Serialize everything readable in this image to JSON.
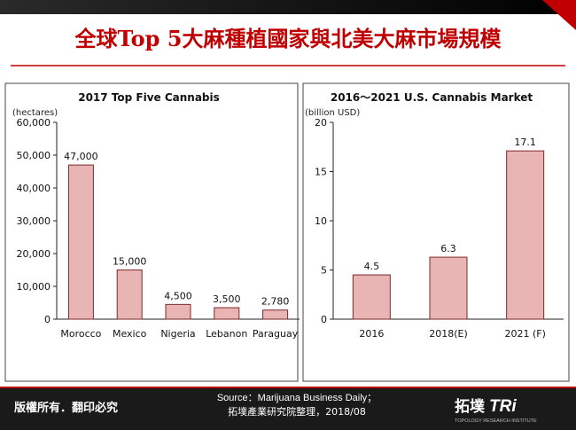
{
  "slide": {
    "title": "全球Top 5大麻種植國家與北美大麻市場規模",
    "copyright": "版權所有．翻印必究",
    "source_line1": "Source：Marijuana Business Daily；",
    "source_line2": "拓墣產業研究院整理，2018/08",
    "logo_cn": "拓墣",
    "logo_tri": "TRi",
    "logo_sub": "TOPOLOGY RESEARCH INSTITUTE",
    "colors": {
      "title_red": "#c00000",
      "bar_fill": "#e8b4b4",
      "bar_stroke": "#7a2a2a",
      "footer_bg": "#1a1a1a"
    }
  },
  "chart_data": [
    {
      "type": "bar",
      "title": "2017 Top Five Cannabis",
      "ylabel": "(hectares)",
      "categories": [
        "Morocco",
        "Mexico",
        "Nigeria",
        "Lebanon",
        "Paraguay"
      ],
      "values": [
        47000,
        15000,
        4500,
        3500,
        2780
      ],
      "value_labels": [
        "47,000",
        "15,000",
        "4,500",
        "3,500",
        "2,780"
      ],
      "ylim": [
        0,
        60000
      ],
      "yticks": [
        "0",
        "10,000",
        "20,000",
        "30,000",
        "40,000",
        "50,000",
        "60,000"
      ],
      "grid": false
    },
    {
      "type": "bar",
      "title": "2016～2021 U.S. Cannabis Market",
      "ylabel": "(billion USD)",
      "categories": [
        "2016",
        "2018(E)",
        "2021 (F)"
      ],
      "values": [
        4.5,
        6.3,
        17.1
      ],
      "value_labels": [
        "4.5",
        "6.3",
        "17.1"
      ],
      "ylim": [
        0,
        20
      ],
      "yticks": [
        "0",
        "5",
        "10",
        "15",
        "20"
      ],
      "grid": false
    }
  ]
}
